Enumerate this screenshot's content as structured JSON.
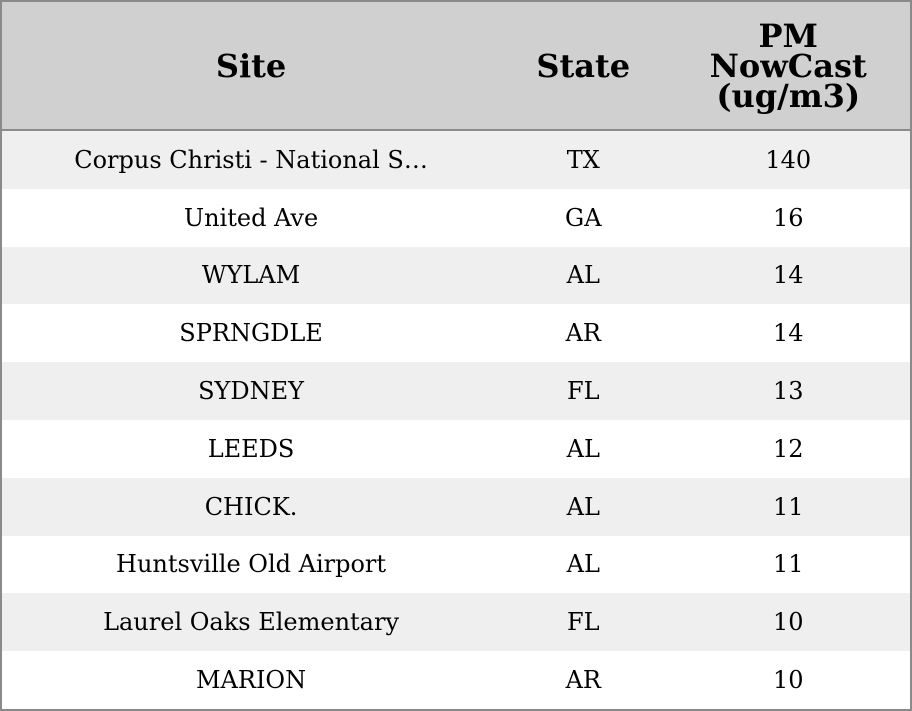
{
  "table": {
    "columns": [
      "Site",
      "State",
      "PM NowCast (ug/m3)"
    ],
    "rows": [
      [
        "Corpus Christi - National S…",
        "TX",
        140
      ],
      [
        "United Ave",
        "GA",
        16
      ],
      [
        "WYLAM",
        "AL",
        14
      ],
      [
        "SPRNGDLE",
        "AR",
        14
      ],
      [
        "SYDNEY",
        "FL",
        13
      ],
      [
        "LEEDS",
        "AL",
        12
      ],
      [
        "CHICK.",
        "AL",
        11
      ],
      [
        "Huntsville Old Airport",
        "AL",
        11
      ],
      [
        "Laurel Oaks Elementary",
        "FL",
        10
      ],
      [
        "MARION",
        "AR",
        10
      ]
    ]
  }
}
